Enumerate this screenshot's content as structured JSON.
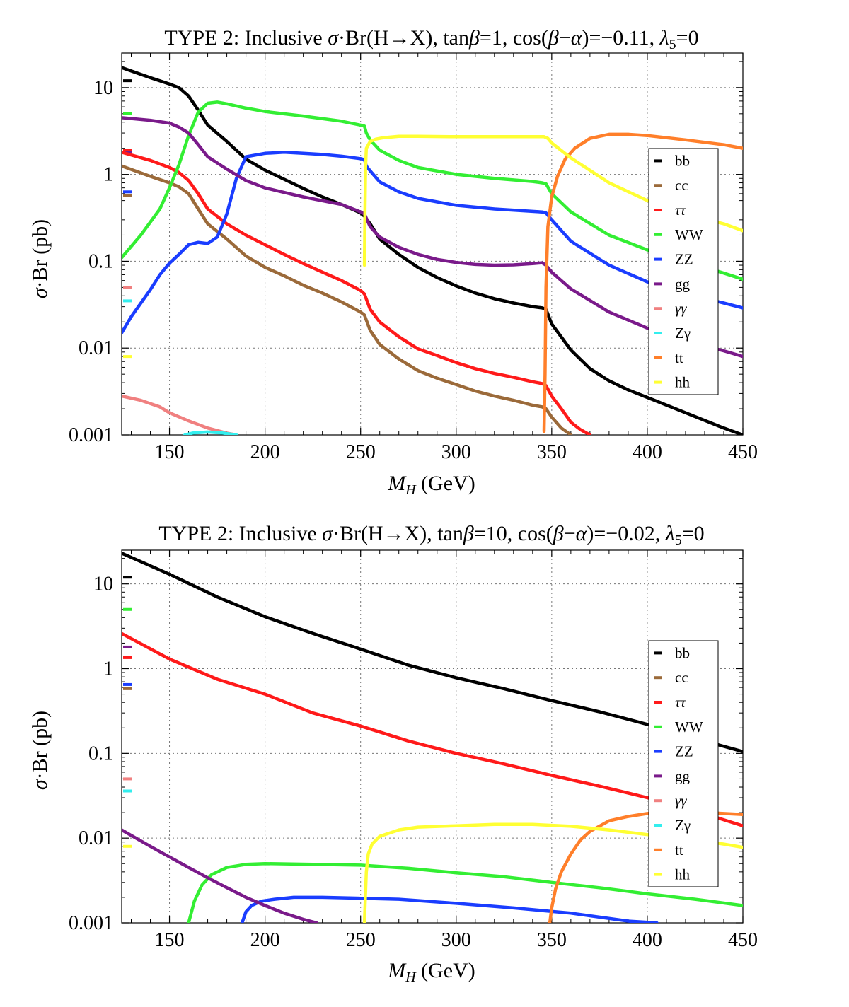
{
  "chart_data": [
    {
      "type": "line",
      "title_main": "TYPE 2: Inclusive ",
      "title_sigma": "σ",
      "title_br": "·Br(H→X), tan",
      "title_beta": "β",
      "title_rest1": "=1, cos(",
      "title_beta2": "β",
      "title_minus": "−",
      "title_alpha": "α",
      "title_rest2": ")=−0.11, ",
      "title_lambda": "λ",
      "title_sub": "5",
      "title_end": "=0",
      "xlabel_m": "M",
      "xlabel_sub": "H",
      "xlabel_unit": " (GeV)",
      "ylabel_sigma": "σ",
      "ylabel_rest": "·Br (pb)",
      "xlim": [
        125,
        450
      ],
      "ylim": [
        0.001,
        25
      ],
      "yscale": "log",
      "grid": "dotted",
      "legend_position": "right",
      "xticks": [
        "150",
        "200",
        "250",
        "300",
        "350",
        "400",
        "450"
      ],
      "yticks": [
        "10",
        "1",
        "0.1",
        "0.01",
        "0.001"
      ],
      "reference_marks": [
        {
          "name": "bb",
          "y": 12
        },
        {
          "name": "cc",
          "y": 0.57
        },
        {
          "name": "ττ",
          "y": 1.9
        },
        {
          "name": "WW",
          "y": 5.0
        },
        {
          "name": "ZZ",
          "y": 0.63
        },
        {
          "name": "gg",
          "y": 1.8
        },
        {
          "name": "γγ",
          "y": 0.05
        },
        {
          "name": "Zγ",
          "y": 0.035
        },
        {
          "name": "hh",
          "y": 0.008
        }
      ],
      "series": [
        {
          "name": "bb",
          "color": "#000000",
          "x": [
            125,
            140,
            150,
            155,
            160,
            165,
            170,
            180,
            190,
            200,
            210,
            220,
            230,
            240,
            250,
            252,
            255,
            260,
            270,
            280,
            290,
            300,
            310,
            320,
            330,
            340,
            345,
            347,
            350,
            360,
            370,
            380,
            390,
            400,
            420,
            440,
            450
          ],
          "y": [
            17,
            13,
            11,
            10,
            8,
            5.5,
            3.7,
            2.4,
            1.5,
            1.12,
            0.88,
            0.69,
            0.55,
            0.45,
            0.36,
            0.33,
            0.27,
            0.18,
            0.12,
            0.085,
            0.065,
            0.052,
            0.043,
            0.037,
            0.033,
            0.03,
            0.029,
            0.028,
            0.019,
            0.0095,
            0.0058,
            0.0042,
            0.0033,
            0.0027,
            0.0018,
            0.0012,
            0.001
          ]
        },
        {
          "name": "cc",
          "color": "#9b6a3a",
          "x": [
            125,
            140,
            150,
            155,
            160,
            165,
            170,
            180,
            190,
            200,
            210,
            220,
            230,
            240,
            250,
            252,
            255,
            260,
            270,
            280,
            290,
            300,
            310,
            320,
            330,
            340,
            345,
            347,
            350,
            355,
            360
          ],
          "y": [
            1.25,
            0.95,
            0.8,
            0.72,
            0.6,
            0.4,
            0.27,
            0.18,
            0.115,
            0.085,
            0.068,
            0.053,
            0.043,
            0.034,
            0.026,
            0.024,
            0.016,
            0.011,
            0.0075,
            0.0055,
            0.0045,
            0.0038,
            0.0032,
            0.0028,
            0.0025,
            0.0022,
            0.0021,
            0.002,
            0.0016,
            0.0012,
            0.001
          ]
        },
        {
          "name": "ττ",
          "color": "#ff1a1a",
          "x": [
            125,
            140,
            150,
            155,
            160,
            165,
            170,
            180,
            190,
            200,
            210,
            220,
            230,
            240,
            250,
            252,
            255,
            260,
            270,
            280,
            290,
            300,
            310,
            320,
            330,
            340,
            345,
            347,
            350,
            355,
            360,
            365,
            370
          ],
          "y": [
            1.8,
            1.45,
            1.2,
            1.05,
            0.85,
            0.6,
            0.4,
            0.27,
            0.2,
            0.155,
            0.12,
            0.094,
            0.075,
            0.06,
            0.046,
            0.042,
            0.028,
            0.02,
            0.0135,
            0.0098,
            0.0082,
            0.0068,
            0.0058,
            0.0051,
            0.0046,
            0.0041,
            0.0039,
            0.0037,
            0.0028,
            0.002,
            0.0014,
            0.00115,
            0.001
          ]
        },
        {
          "name": "WW",
          "color": "#33ee33",
          "x": [
            125,
            135,
            145,
            150,
            155,
            160,
            165,
            170,
            175,
            180,
            190,
            200,
            220,
            240,
            250,
            252,
            253,
            255,
            260,
            270,
            280,
            300,
            320,
            340,
            345,
            347,
            350,
            360,
            380,
            400,
            420,
            440,
            450
          ],
          "y": [
            0.11,
            0.2,
            0.4,
            0.7,
            1.3,
            2.8,
            5.2,
            6.6,
            6.8,
            6.5,
            5.8,
            5.3,
            4.7,
            4.1,
            3.7,
            3.6,
            3.0,
            2.5,
            1.9,
            1.45,
            1.2,
            1.0,
            0.9,
            0.83,
            0.8,
            0.78,
            0.6,
            0.37,
            0.2,
            0.135,
            0.1,
            0.073,
            0.062
          ]
        },
        {
          "name": "ZZ",
          "color": "#1a3dff",
          "x": [
            125,
            130,
            140,
            145,
            150,
            155,
            160,
            165,
            170,
            175,
            180,
            185,
            190,
            200,
            210,
            220,
            230,
            240,
            250,
            252,
            253,
            255,
            260,
            270,
            280,
            300,
            320,
            340,
            345,
            347,
            350,
            360,
            380,
            400,
            420,
            440,
            450
          ],
          "y": [
            0.015,
            0.023,
            0.047,
            0.07,
            0.095,
            0.12,
            0.155,
            0.165,
            0.16,
            0.19,
            0.35,
            0.9,
            1.6,
            1.75,
            1.8,
            1.75,
            1.7,
            1.62,
            1.52,
            1.48,
            1.25,
            1.1,
            0.82,
            0.63,
            0.53,
            0.44,
            0.4,
            0.375,
            0.37,
            0.36,
            0.3,
            0.17,
            0.09,
            0.058,
            0.042,
            0.033,
            0.029
          ]
        },
        {
          "name": "gg",
          "color": "#7a1a8a",
          "x": [
            125,
            140,
            150,
            155,
            160,
            165,
            170,
            180,
            190,
            200,
            220,
            240,
            250,
            252,
            255,
            260,
            270,
            280,
            290,
            300,
            310,
            320,
            330,
            340,
            345,
            347,
            350,
            360,
            380,
            400,
            420,
            440,
            450
          ],
          "y": [
            4.5,
            4.2,
            3.9,
            3.5,
            3.0,
            2.2,
            1.6,
            1.15,
            0.85,
            0.7,
            0.55,
            0.45,
            0.37,
            0.35,
            0.25,
            0.19,
            0.145,
            0.12,
            0.105,
            0.097,
            0.092,
            0.09,
            0.091,
            0.094,
            0.096,
            0.09,
            0.075,
            0.048,
            0.026,
            0.017,
            0.012,
            0.0093,
            0.008
          ]
        },
        {
          "name": "γγ",
          "color": "#f08080",
          "x": [
            125,
            135,
            145,
            150,
            160,
            170,
            180,
            185
          ],
          "y": [
            0.0028,
            0.0025,
            0.0021,
            0.0018,
            0.00145,
            0.0012,
            0.00105,
            0.001
          ]
        },
        {
          "name": "Zγ",
          "color": "#33eeee",
          "x": [
            158,
            162,
            170,
            178,
            185
          ],
          "y": [
            0.001,
            0.00105,
            0.00108,
            0.00105,
            0.001
          ]
        },
        {
          "name": "tt",
          "color": "#ff7f2a",
          "x": [
            346,
            346.5,
            347,
            348,
            350,
            353,
            357,
            362,
            370,
            380,
            390,
            400,
            420,
            440,
            450
          ],
          "y": [
            0.0011,
            0.005,
            0.05,
            0.25,
            0.55,
            0.95,
            1.5,
            2.0,
            2.6,
            2.9,
            2.9,
            2.8,
            2.5,
            2.2,
            2.0
          ]
        },
        {
          "name": "hh",
          "color": "#ffff33",
          "x": [
            252,
            252.3,
            252.6,
            253,
            255,
            258,
            262,
            270,
            280,
            300,
            320,
            340,
            346,
            348,
            350,
            360,
            380,
            400,
            420,
            440,
            450
          ],
          "y": [
            0.09,
            0.4,
            1.2,
            2.0,
            2.4,
            2.55,
            2.65,
            2.75,
            2.75,
            2.72,
            2.72,
            2.72,
            2.72,
            2.6,
            2.3,
            1.55,
            0.8,
            0.5,
            0.35,
            0.27,
            0.225
          ]
        }
      ]
    },
    {
      "type": "line",
      "title_main": "TYPE 2: Inclusive ",
      "title_sigma": "σ",
      "title_br": "·Br(H→X), tan",
      "title_beta": "β",
      "title_rest1": "=10, cos(",
      "title_beta2": "β",
      "title_minus": "−",
      "title_alpha": "α",
      "title_rest2": ")=−0.02, ",
      "title_lambda": "λ",
      "title_sub": "5",
      "title_end": "=0",
      "xlabel_m": "M",
      "xlabel_sub": "H",
      "xlabel_unit": " (GeV)",
      "ylabel_sigma": "σ",
      "ylabel_rest": "·Br (pb)",
      "xlim": [
        125,
        450
      ],
      "ylim": [
        0.001,
        25
      ],
      "yscale": "log",
      "grid": "dotted",
      "legend_position": "right",
      "xticks": [
        "150",
        "200",
        "250",
        "300",
        "350",
        "400",
        "450"
      ],
      "yticks": [
        "10",
        "1",
        "0.1",
        "0.01",
        "0.001"
      ],
      "reference_marks": [
        {
          "name": "bb",
          "y": 12
        },
        {
          "name": "cc",
          "y": 0.58
        },
        {
          "name": "ττ",
          "y": 1.35
        },
        {
          "name": "WW",
          "y": 5.0
        },
        {
          "name": "ZZ",
          "y": 0.65
        },
        {
          "name": "gg",
          "y": 1.8
        },
        {
          "name": "γγ",
          "y": 0.05
        },
        {
          "name": "Zγ",
          "y": 0.036
        },
        {
          "name": "hh",
          "y": 0.008
        }
      ],
      "series": [
        {
          "name": "bb",
          "color": "#000000",
          "x": [
            125,
            150,
            175,
            200,
            225,
            250,
            275,
            300,
            325,
            350,
            375,
            400,
            425,
            450
          ],
          "y": [
            23,
            13,
            7.0,
            4.1,
            2.6,
            1.7,
            1.1,
            0.78,
            0.58,
            0.42,
            0.31,
            0.22,
            0.15,
            0.105
          ]
        },
        {
          "name": "cc",
          "color": "#9b6a3a",
          "x": [],
          "y": []
        },
        {
          "name": "ττ",
          "color": "#ff1a1a",
          "x": [
            125,
            150,
            175,
            200,
            225,
            250,
            275,
            300,
            325,
            350,
            375,
            400,
            425,
            450
          ],
          "y": [
            2.6,
            1.3,
            0.75,
            0.5,
            0.3,
            0.21,
            0.14,
            0.1,
            0.075,
            0.055,
            0.041,
            0.03,
            0.021,
            0.014
          ]
        },
        {
          "name": "WW",
          "color": "#33ee33",
          "x": [
            160,
            163,
            167,
            172,
            180,
            190,
            200,
            225,
            250,
            275,
            300,
            325,
            350,
            375,
            400,
            425,
            450
          ],
          "y": [
            0.001,
            0.0018,
            0.0028,
            0.0037,
            0.0045,
            0.0049,
            0.005,
            0.0049,
            0.0048,
            0.0044,
            0.0039,
            0.0035,
            0.003,
            0.0026,
            0.0022,
            0.0019,
            0.0016
          ]
        },
        {
          "name": "ZZ",
          "color": "#1a3dff",
          "x": [
            188,
            190,
            193,
            198,
            205,
            215,
            230,
            250,
            270,
            300,
            330,
            360,
            390,
            405
          ],
          "y": [
            0.001,
            0.00135,
            0.0016,
            0.0018,
            0.0019,
            0.002,
            0.002,
            0.00195,
            0.0019,
            0.0017,
            0.0015,
            0.0013,
            0.00105,
            0.001
          ]
        },
        {
          "name": "gg",
          "color": "#7a1a8a",
          "x": [
            125,
            140,
            150,
            160,
            170,
            180,
            190,
            200,
            210,
            220,
            227
          ],
          "y": [
            0.0125,
            0.008,
            0.006,
            0.0045,
            0.0034,
            0.0026,
            0.002,
            0.0016,
            0.0013,
            0.0011,
            0.001
          ]
        },
        {
          "name": "γγ",
          "color": "#f08080",
          "x": [],
          "y": []
        },
        {
          "name": "Zγ",
          "color": "#33eeee",
          "x": [],
          "y": []
        },
        {
          "name": "tt",
          "color": "#ff7f2a",
          "x": [
            349,
            350,
            352,
            355,
            360,
            365,
            370,
            380,
            390,
            400,
            410,
            420,
            435,
            450
          ],
          "y": [
            0.001,
            0.0015,
            0.0025,
            0.004,
            0.0065,
            0.0095,
            0.012,
            0.016,
            0.018,
            0.0195,
            0.02,
            0.0202,
            0.0198,
            0.019
          ]
        },
        {
          "name": "hh",
          "color": "#ffff33",
          "x": [
            252,
            252.5,
            253,
            254,
            256,
            260,
            270,
            280,
            300,
            320,
            340,
            360,
            380,
            400,
            420,
            440,
            450
          ],
          "y": [
            0.001,
            0.002,
            0.004,
            0.0065,
            0.0085,
            0.0105,
            0.0125,
            0.0135,
            0.014,
            0.0145,
            0.0145,
            0.0138,
            0.0125,
            0.011,
            0.0098,
            0.0085,
            0.0078
          ]
        }
      ]
    }
  ]
}
